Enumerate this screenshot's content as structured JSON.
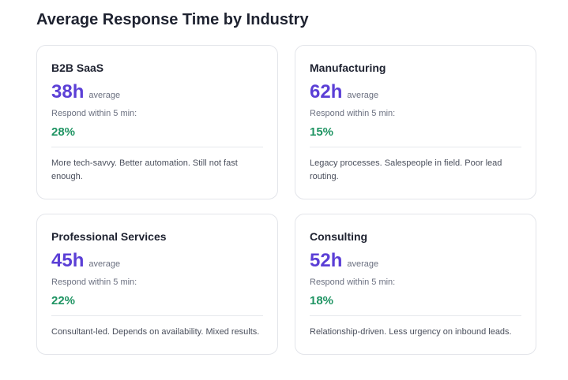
{
  "section": {
    "title": "Average Response Time by Industry"
  },
  "cards": [
    {
      "title": "B2B SaaS",
      "average": "38h",
      "average_label": "average",
      "respond_label": "Respond within 5 min:",
      "respond_value": "28%",
      "note": "More tech-savvy. Better automation. Still not fast enough."
    },
    {
      "title": "Manufacturing",
      "average": "62h",
      "average_label": "average",
      "respond_label": "Respond within 5 min:",
      "respond_value": "15%",
      "note": "Legacy processes. Salespeople in field. Poor lead routing."
    },
    {
      "title": "Professional Services",
      "average": "45h",
      "average_label": "average",
      "respond_label": "Respond within 5 min:",
      "respond_value": "22%",
      "note": "Consultant-led. Depends on availability. Mixed results."
    },
    {
      "title": "Consulting",
      "average": "52h",
      "average_label": "average",
      "respond_label": "Respond within 5 min:",
      "respond_value": "18%",
      "note": "Relationship-driven. Less urgency on inbound leads."
    }
  ],
  "colors": {
    "metric": "#5b3fd6",
    "percent": "#1f9463",
    "border": "#e3e5ea"
  }
}
